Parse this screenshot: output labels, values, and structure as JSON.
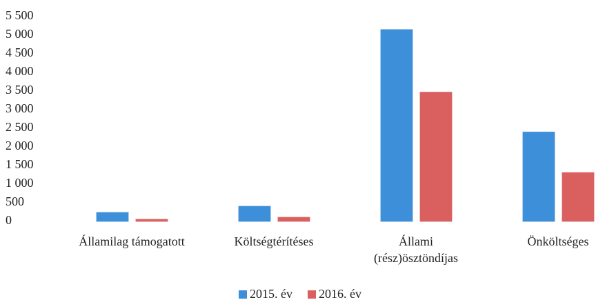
{
  "chart_data": {
    "type": "bar",
    "categories": [
      "Államilag támogatott",
      "Költségtérítéses",
      "Állami\n(rész)ösztöndíjas",
      "Önköltséges"
    ],
    "series": [
      {
        "name": "2015. év",
        "color": "#3d8fd9",
        "values": [
          240,
          405,
          5150,
          2400
        ]
      },
      {
        "name": "2016. év",
        "color": "#d9605f",
        "values": [
          55,
          110,
          3470,
          1310
        ]
      }
    ],
    "ylim": [
      0,
      5500
    ],
    "yticks": [
      0,
      500,
      {
        "value": 1000,
        "label": "1 000"
      },
      {
        "value": 1500,
        "label": "1 500"
      },
      {
        "value": 2000,
        "label": "2 000"
      },
      {
        "value": 2500,
        "label": "2 500"
      },
      {
        "value": 3000,
        "label": "3 000"
      },
      {
        "value": 3500,
        "label": "3 500"
      },
      {
        "value": 4000,
        "label": "4 000"
      },
      {
        "value": 4500,
        "label": "4 500"
      },
      {
        "value": 5000,
        "label": "5 000"
      },
      {
        "value": 5500,
        "label": "5 500"
      }
    ],
    "grid": false,
    "legend": "bottom"
  }
}
